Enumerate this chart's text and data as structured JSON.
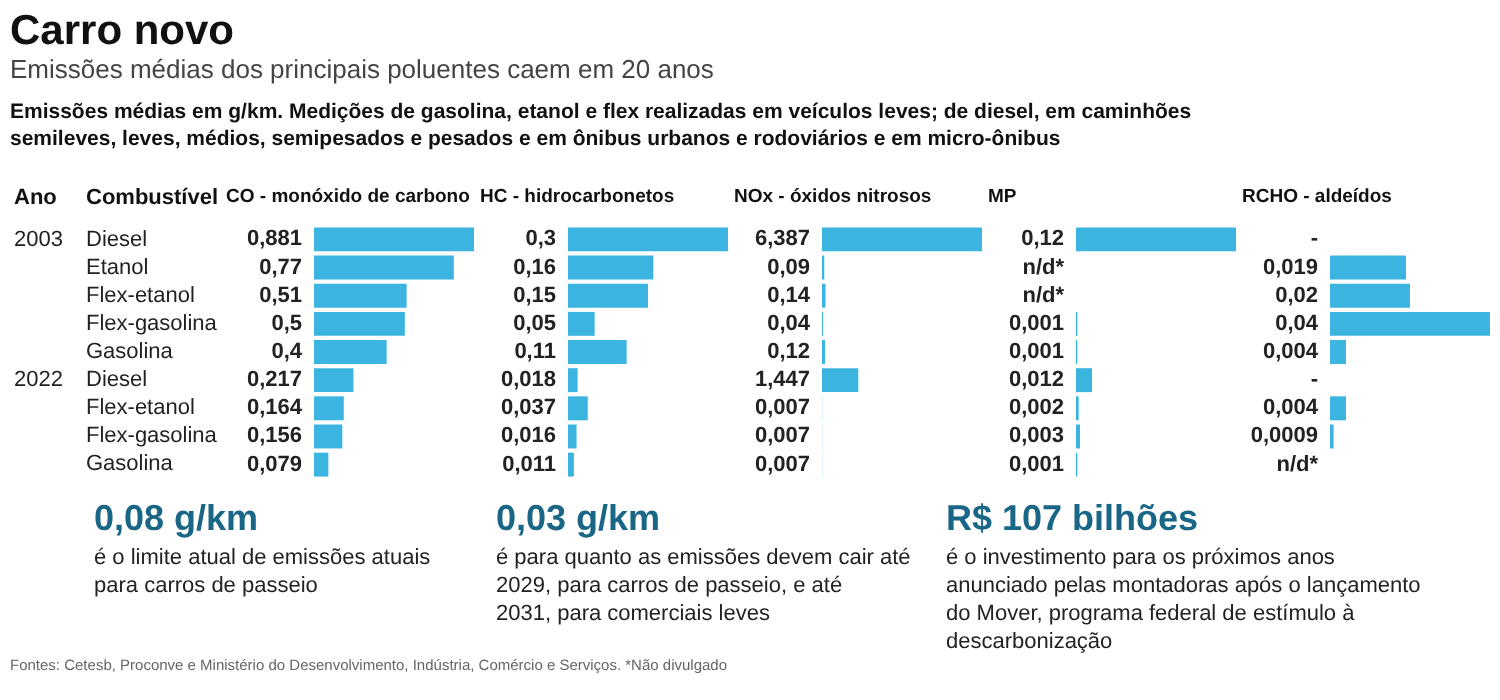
{
  "chart_data": [
    {
      "type": "other",
      "title": "Carro novo",
      "subtitle": "Emissões médias dos principais poluentes caem em 20 anos",
      "annotations": [
        "Emissões médias em g/km. Medições de gasolina, etanol e flex realizadas em veículos leves; de diesel, em caminhões semileves, leves, médios, semipesados e pesados e em ônibus urbanos e rodoviários e em micro-ônibus"
      ]
    },
    {
      "type": "bar",
      "orientation": "horizontal",
      "title": "CO - monóxido de carbono",
      "ylabel": "Combustível",
      "annotations": [
        "Ano",
        "2003",
        "2022"
      ],
      "categories": [
        "Diesel",
        "Etanol",
        "Flex-etanol",
        "Flex-gasolina",
        "Gasolina",
        "Diesel",
        "Flex-etanol",
        "Flex-gasolina",
        "Gasolina"
      ],
      "color": "#3cb4e0",
      "values": [
        0.881,
        0.77,
        0.51,
        0.5,
        0.4,
        0.217,
        0.164,
        0.156,
        0.079
      ],
      "value_labels": [
        "0,881",
        "0,77",
        "0,51",
        "0,5",
        "0,4",
        "0,217",
        "0,164",
        "0,156",
        "0,079"
      ]
    },
    {
      "type": "bar",
      "orientation": "horizontal",
      "title": "HC - hidrocarbonetos",
      "color": "#3cb4e0",
      "values": [
        0.3,
        0.16,
        0.15,
        0.05,
        0.11,
        0.018,
        0.037,
        0.016,
        0.011
      ],
      "value_labels": [
        "0,3",
        "0,16",
        "0,15",
        "0,05",
        "0,11",
        "0,018",
        "0,037",
        "0,016",
        "0,011"
      ]
    },
    {
      "type": "bar",
      "orientation": "horizontal",
      "title": "NOx - óxidos nitrosos",
      "color": "#3cb4e0",
      "values": [
        6.387,
        0.09,
        0.14,
        0.04,
        0.12,
        1.447,
        0.007,
        0.007,
        0.007
      ],
      "value_labels": [
        "6,387",
        "0,09",
        "0,14",
        "0,04",
        "0,12",
        "1,447",
        "0,007",
        "0,007",
        "0,007"
      ]
    },
    {
      "type": "bar",
      "orientation": "horizontal",
      "title": "MP",
      "color": "#3cb4e0",
      "values": [
        0.12,
        null,
        null,
        0.001,
        0.001,
        0.012,
        0.002,
        0.003,
        0.001
      ],
      "value_labels": [
        "0,12",
        "n/d*",
        "n/d*",
        "0,001",
        "0,001",
        "0,012",
        "0,002",
        "0,003",
        "0,001"
      ]
    },
    {
      "type": "bar",
      "orientation": "horizontal",
      "title": "RCHO - aldeídos",
      "color": "#3cb4e0",
      "values": [
        null,
        0.019,
        0.02,
        0.04,
        0.004,
        null,
        0.004,
        0.0009,
        null
      ],
      "value_labels": [
        "-",
        "0,019",
        "0,02",
        "0,04",
        "0,004",
        "-",
        "0,004",
        "0,0009",
        "n/d*"
      ]
    },
    {
      "type": "other",
      "annotations": [
        "0,08 g/km",
        "é o limite atual de emissões atuais para carros de passeio",
        "0,03 g/km",
        "é para quanto as emissões devem cair até 2029, para carros de passeio, e até 2031, para comerciais leves",
        "R$ 107 bilhões",
        "é o investimento para os próximos anos anunciado pelas montadoras após o lançamento do Mover, programa federal de estímulo à descarbonização",
        "Fontes: Cetesb, Proconve e Ministério do Desenvolvimento, Indústria, Comércio e Serviços. *Não divulgado"
      ]
    }
  ]
}
